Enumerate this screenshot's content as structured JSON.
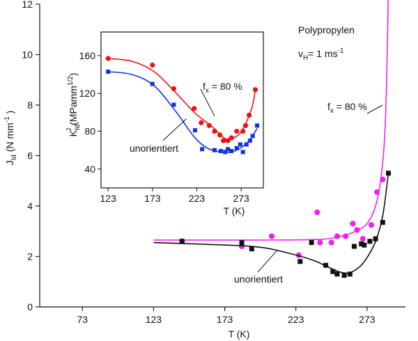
{
  "chart_data": [
    {
      "id": "main",
      "type": "scatter",
      "x_ticks": [
        73,
        123,
        173,
        223,
        273
      ],
      "y_ticks": [
        0,
        2,
        4,
        6,
        8,
        10,
        12
      ],
      "xlim": [
        43,
        300
      ],
      "ylim": [
        0,
        12
      ],
      "xlabel": "T (K)",
      "ylabel_main": "J",
      "ylabel_sub": "Id",
      "ylabel_rest": "(N mm",
      "ylabel_sup": "-1",
      "ylabel_close": ")",
      "annotations": {
        "title": "Polypropylen",
        "vh_main": "v",
        "vh_sub": "H",
        "vh_rest": "= 1  ms",
        "vh_sup": "-1",
        "fx_label": "f",
        "fx_sub": "x",
        "fx_rest": " = 80 %",
        "unorientiert": "unorientiert"
      },
      "series": [
        {
          "key": "fx80",
          "color": "#ee22ee",
          "marker": "circle",
          "points": [
            [
              143,
              2.6
            ],
            [
              185,
              2.4
            ],
            [
              206,
              2.8
            ],
            [
              225,
              2.05
            ],
            [
              238,
              3.75
            ],
            [
              240,
              2.55
            ],
            [
              248,
              2.55
            ],
            [
              252,
              2.8
            ],
            [
              258,
              2.8
            ],
            [
              263,
              3.3
            ],
            [
              266,
              3.05
            ],
            [
              270,
              2.7
            ],
            [
              276,
              3.25
            ],
            [
              280,
              4.55
            ],
            [
              284,
              5.05
            ],
            [
              288,
              12.5
            ]
          ],
          "curve": [
            [
              123,
              2.65
            ],
            [
              200,
              2.65
            ],
            [
              240,
              2.68
            ],
            [
              255,
              2.8
            ],
            [
              265,
              3.0
            ],
            [
              273,
              3.3
            ],
            [
              279,
              4.0
            ],
            [
              283,
              5.2
            ],
            [
              286,
              7.5
            ],
            [
              288,
              12.5
            ]
          ]
        },
        {
          "key": "unorientiert",
          "color": "#111111",
          "marker": "square",
          "points": [
            [
              143,
              2.6
            ],
            [
              185,
              2.55
            ],
            [
              192,
              2.3
            ],
            [
              226,
              1.8
            ],
            [
              234,
              2.55
            ],
            [
              244,
              1.65
            ],
            [
              249,
              1.4
            ],
            [
              252,
              1.3
            ],
            [
              257,
              1.25
            ],
            [
              261,
              1.3
            ],
            [
              264,
              2.4
            ],
            [
              269,
              2.5
            ],
            [
              271,
              2.45
            ],
            [
              275,
              2.6
            ],
            [
              279,
              2.7
            ],
            [
              284,
              3.35
            ],
            [
              288,
              5.3
            ]
          ],
          "curve": [
            [
              123,
              2.55
            ],
            [
              175,
              2.45
            ],
            [
              200,
              2.35
            ],
            [
              220,
              2.1
            ],
            [
              235,
              1.85
            ],
            [
              245,
              1.6
            ],
            [
              253,
              1.4
            ],
            [
              260,
              1.35
            ],
            [
              267,
              1.55
            ],
            [
              273,
              1.95
            ],
            [
              279,
              2.6
            ],
            [
              284,
              3.6
            ],
            [
              288,
              5.3
            ]
          ]
        }
      ]
    },
    {
      "id": "inset",
      "type": "scatter",
      "x_ticks": [
        123,
        173,
        223,
        273
      ],
      "y_ticks": [
        40,
        80,
        120,
        160
      ],
      "xlim": [
        115,
        298
      ],
      "ylim": [
        20,
        185
      ],
      "xlabel": "T (K)",
      "ylabel_main": "K",
      "ylabel_sub": "Id",
      "ylabel_sup": "J",
      "ylabel_rest": "(MPamm",
      "ylabel_sup2": "1/2",
      "ylabel_close": ")",
      "annotations": {
        "fx_label": "f",
        "fx_sub": "x",
        "fx_rest": " = 80 %",
        "unorientiert": "unorientiert"
      },
      "series": [
        {
          "key": "fx80",
          "color": "#ee1111",
          "marker": "circle",
          "points": [
            [
              123,
              157
            ],
            [
              173,
              150
            ],
            [
              197,
              125
            ],
            [
              220,
              104
            ],
            [
              228,
              89
            ],
            [
              237,
              86
            ],
            [
              243,
              80
            ],
            [
              249,
              76
            ],
            [
              253,
              70
            ],
            [
              258,
              70
            ],
            [
              262,
              73
            ],
            [
              268,
              80
            ],
            [
              275,
              80
            ],
            [
              278,
              86
            ],
            [
              282,
              97
            ],
            [
              289,
              124
            ]
          ],
          "curve": [
            [
              123,
              157
            ],
            [
              150,
              154
            ],
            [
              175,
              143
            ],
            [
              200,
              120
            ],
            [
              220,
              100
            ],
            [
              240,
              85
            ],
            [
              255,
              72
            ],
            [
              262,
              72
            ],
            [
              272,
              78
            ],
            [
              280,
              92
            ],
            [
              286,
              108
            ],
            [
              289,
              124
            ]
          ]
        },
        {
          "key": "unorientiert",
          "color": "#1133dd",
          "marker": "square",
          "points": [
            [
              123,
              143
            ],
            [
              173,
              130
            ],
            [
              197,
              108
            ],
            [
              221,
              81
            ],
            [
              229,
              61
            ],
            [
              243,
              60
            ],
            [
              250,
              59
            ],
            [
              255,
              58
            ],
            [
              258,
              61
            ],
            [
              262,
              59
            ],
            [
              268,
              62
            ],
            [
              272,
              66
            ],
            [
              275,
              58
            ],
            [
              279,
              66
            ],
            [
              283,
              70
            ],
            [
              286,
              75
            ],
            [
              291,
              86
            ]
          ],
          "curve": [
            [
              123,
              143
            ],
            [
              150,
              140
            ],
            [
              175,
              128
            ],
            [
              200,
              100
            ],
            [
              220,
              74
            ],
            [
              235,
              62
            ],
            [
              250,
              58
            ],
            [
              262,
              58
            ],
            [
              272,
              62
            ],
            [
              282,
              70
            ],
            [
              291,
              83
            ]
          ]
        }
      ]
    }
  ]
}
